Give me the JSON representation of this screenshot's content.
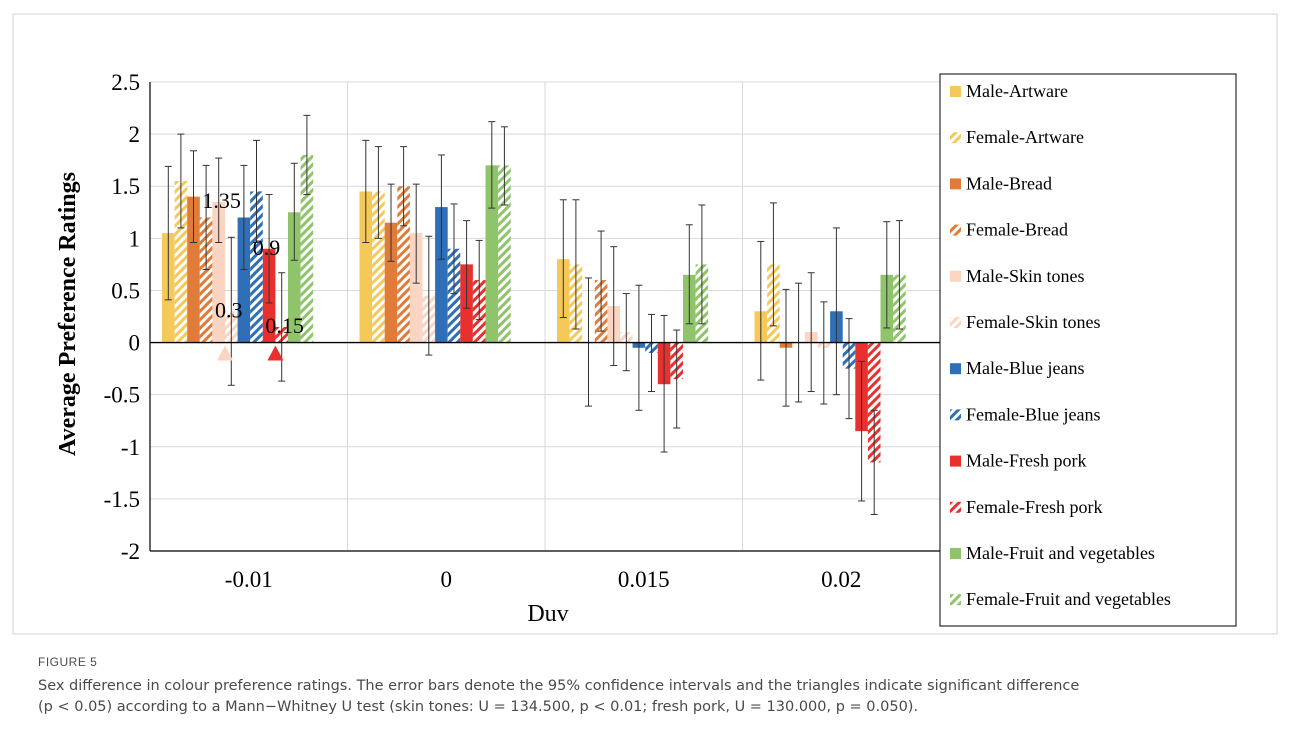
{
  "figure_label": "FIGURE 5",
  "caption": {
    "line1": "Sex difference in colour preference ratings. The error bars denote the 95% confidence intervals and the triangles indicate significant difference",
    "line2": "(p < 0.05) according to a Mann−Whitney U test (skin tones: U = 134.500, p < 0.01; fresh pork, U = 130.000, p = 0.050)."
  },
  "chart_data": {
    "type": "bar",
    "xlabel": "Duv",
    "ylabel": "Average Preference Ratings",
    "categories": [
      "-0.01",
      "0",
      "0.015",
      "0.02"
    ],
    "ylim": [
      -2,
      2.5
    ],
    "yticks": [
      "-2",
      "-1.5",
      "-1",
      "-0.5",
      "0",
      "0.5",
      "1",
      "1.5",
      "2",
      "2.5"
    ],
    "grid": true,
    "legend_position": "right",
    "series": [
      {
        "name": "Male-Artware",
        "color": "#f5c85a",
        "hatch": false,
        "values": [
          1.05,
          1.45,
          0.8,
          0.3
        ],
        "lower": [
          0.41,
          0.96,
          0.24,
          -0.36
        ],
        "upper": [
          1.69,
          1.94,
          1.37,
          0.97
        ]
      },
      {
        "name": "Female-Artware",
        "color": "#f5c85a",
        "hatch": true,
        "values": [
          1.55,
          1.45,
          0.75,
          0.75
        ],
        "lower": [
          1.1,
          1.0,
          0.13,
          0.16
        ],
        "upper": [
          2.0,
          1.88,
          1.37,
          1.34
        ]
      },
      {
        "name": "Male-Bread",
        "color": "#e07b39",
        "hatch": false,
        "values": [
          1.4,
          1.15,
          0.0,
          -0.05
        ],
        "lower": [
          0.96,
          0.78,
          -0.61,
          -0.61
        ],
        "upper": [
          1.84,
          1.52,
          0.62,
          0.51
        ]
      },
      {
        "name": "Female-Bread",
        "color": "#e07b39",
        "hatch": true,
        "values": [
          1.2,
          1.5,
          0.6,
          0.0
        ],
        "lower": [
          0.7,
          1.12,
          0.11,
          -0.57
        ],
        "upper": [
          1.7,
          1.88,
          1.07,
          0.57
        ]
      },
      {
        "name": "Male-Skin tones",
        "color": "#fbd5c2",
        "hatch": false,
        "values": [
          1.35,
          1.05,
          0.35,
          0.1
        ],
        "lower": [
          0.96,
          0.57,
          -0.22,
          -0.47
        ],
        "upper": [
          1.77,
          1.52,
          0.92,
          0.67
        ]
      },
      {
        "name": "Female-Skin tones",
        "color": "#fbd5c2",
        "hatch": true,
        "values": [
          0.3,
          0.45,
          0.1,
          -0.05
        ],
        "lower": [
          -0.41,
          -0.12,
          -0.27,
          -0.59
        ],
        "upper": [
          1.01,
          1.02,
          0.47,
          0.39
        ]
      },
      {
        "name": "Male-Blue jeans",
        "color": "#2e6fb7",
        "hatch": false,
        "values": [
          1.2,
          1.3,
          -0.05,
          0.3
        ],
        "lower": [
          0.7,
          0.8,
          -0.65,
          -0.5
        ],
        "upper": [
          1.7,
          1.8,
          0.55,
          1.1
        ]
      },
      {
        "name": "Female-Blue jeans",
        "color": "#2e6fb7",
        "hatch": true,
        "values": [
          1.45,
          0.9,
          -0.1,
          -0.25
        ],
        "lower": [
          0.96,
          0.47,
          -0.47,
          -0.73
        ],
        "upper": [
          1.94,
          1.33,
          0.27,
          0.23
        ]
      },
      {
        "name": "Male-Fresh pork",
        "color": "#e8312e",
        "hatch": false,
        "values": [
          0.9,
          0.75,
          -0.4,
          -0.85
        ],
        "lower": [
          0.38,
          0.33,
          -1.05,
          -1.52
        ],
        "upper": [
          1.42,
          1.17,
          0.26,
          -0.18
        ]
      },
      {
        "name": "Female-Fresh pork",
        "color": "#e8312e",
        "hatch": true,
        "values": [
          0.15,
          0.6,
          -0.35,
          -1.15
        ],
        "lower": [
          -0.37,
          0.22,
          -0.82,
          -1.65
        ],
        "upper": [
          0.67,
          0.98,
          0.12,
          -0.65
        ]
      },
      {
        "name": "Male-Fruit and vegetables",
        "color": "#8fc46a",
        "hatch": false,
        "values": [
          1.25,
          1.7,
          0.65,
          0.65
        ],
        "lower": [
          0.79,
          1.29,
          0.18,
          0.14
        ],
        "upper": [
          1.72,
          2.12,
          1.13,
          1.16
        ]
      },
      {
        "name": "Female-Fruit and vegetables",
        "color": "#8fc46a",
        "hatch": true,
        "values": [
          1.8,
          1.7,
          0.75,
          0.65
        ],
        "lower": [
          1.42,
          1.32,
          0.18,
          0.13
        ],
        "upper": [
          2.18,
          2.07,
          1.32,
          1.17
        ]
      }
    ],
    "data_labels": [
      {
        "series": 4,
        "category": 0,
        "text": "1.35"
      },
      {
        "series": 5,
        "category": 0,
        "text": "0.3"
      },
      {
        "series": 8,
        "category": 0,
        "text": "0.9"
      },
      {
        "series": 9,
        "category": 0,
        "text": "0.15"
      }
    ],
    "significance_markers": [
      {
        "category": 0,
        "series_pair": [
          4,
          5
        ],
        "color": "#fbd5c2"
      },
      {
        "category": 0,
        "series_pair": [
          8,
          9
        ],
        "color": "#e8312e"
      }
    ]
  }
}
